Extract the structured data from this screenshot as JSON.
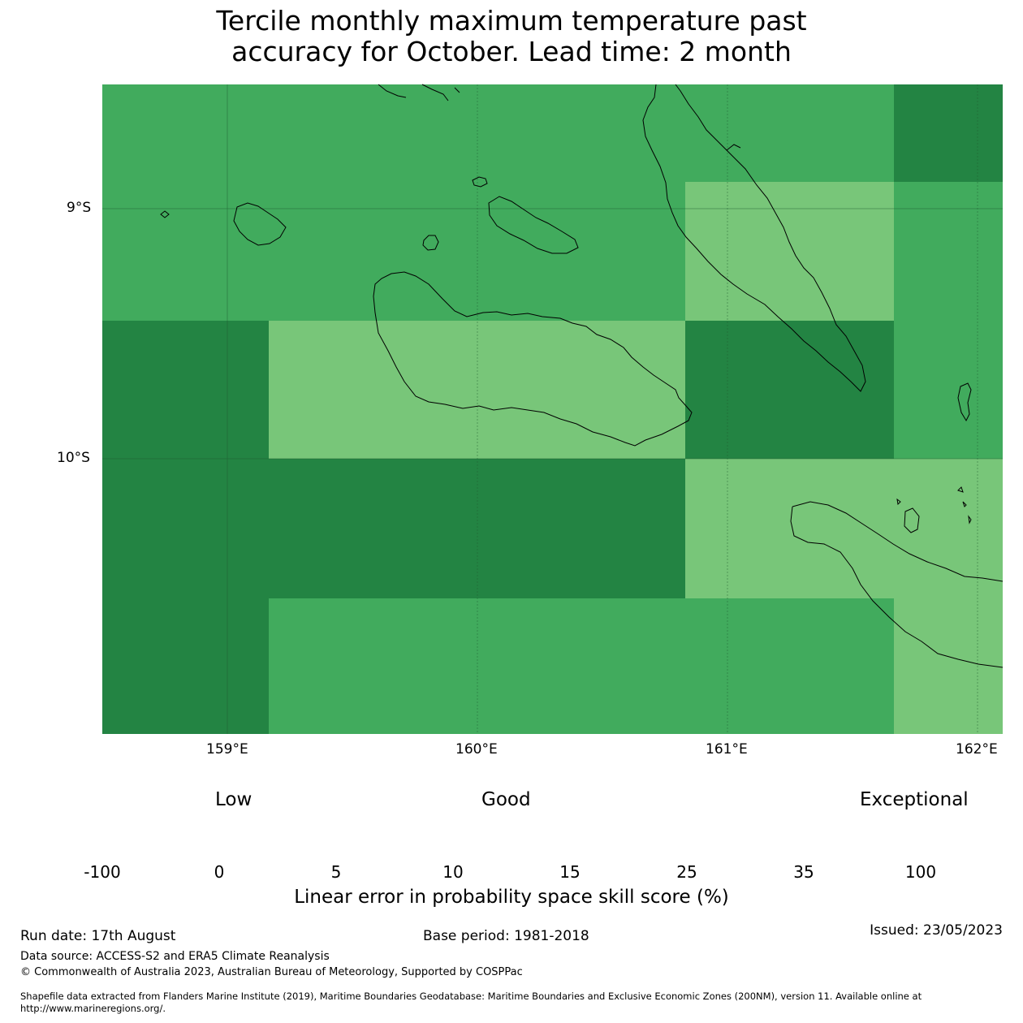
{
  "title_line1": "Tercile monthly maximum temperature past",
  "title_line2": "accuracy for October. Lead time: 2 month",
  "axes": {
    "lat_ticks": [
      "9°S",
      "10°S"
    ],
    "lon_ticks": [
      "159°E",
      "160°E",
      "161°E",
      "162°E"
    ]
  },
  "colorbar": {
    "categories": [
      "Low",
      "Good",
      "Exceptional"
    ],
    "bounds": [
      "-100",
      "0",
      "5",
      "10",
      "15",
      "25",
      "35",
      "100"
    ],
    "colors": [
      "#ffffff",
      "#ffffcc",
      "#d9f0a3",
      "#addd8e",
      "#78c679",
      "#41ab5d",
      "#238443"
    ],
    "label": "Linear error in probability space skill score (%)"
  },
  "chart_data": {
    "type": "heatmap",
    "lon_range": [
      158.5,
      162.1
    ],
    "lat_range": [
      -10.8,
      -8.4
    ],
    "cells": [
      {
        "lon": [
          158.5,
          160.83
        ],
        "lat": [
          -8.4,
          -9.45
        ],
        "class": "25-35"
      },
      {
        "lon": [
          160.83,
          161.67
        ],
        "lat": [
          -8.4,
          -8.89
        ],
        "class": "25-35"
      },
      {
        "lon": [
          161.67,
          162.1
        ],
        "lat": [
          -8.4,
          -8.89
        ],
        "class": "35-100"
      },
      {
        "lon": [
          160.83,
          161.67
        ],
        "lat": [
          -8.89,
          -9.45
        ],
        "class": "15-25"
      },
      {
        "lon": [
          161.67,
          162.1
        ],
        "lat": [
          -8.89,
          -10.0
        ],
        "class": "25-35"
      },
      {
        "lon": [
          158.5,
          159.17
        ],
        "lat": [
          -9.45,
          -10.0
        ],
        "class": "35-100"
      },
      {
        "lon": [
          159.17,
          160.83
        ],
        "lat": [
          -9.45,
          -10.0
        ],
        "class": "15-25"
      },
      {
        "lon": [
          160.83,
          161.67
        ],
        "lat": [
          -9.45,
          -10.0
        ],
        "class": "35-100"
      },
      {
        "lon": [
          158.5,
          160.83
        ],
        "lat": [
          -10.0,
          -10.56
        ],
        "class": "35-100"
      },
      {
        "lon": [
          160.83,
          162.1
        ],
        "lat": [
          -10.0,
          -10.56
        ],
        "class": "15-25"
      },
      {
        "lon": [
          158.5,
          159.17
        ],
        "lat": [
          -10.56,
          -11.1
        ],
        "class": "35-100"
      },
      {
        "lon": [
          159.17,
          161.67
        ],
        "lat": [
          -10.56,
          -11.1
        ],
        "class": "25-35"
      },
      {
        "lon": [
          161.67,
          162.1
        ],
        "lat": [
          -10.56,
          -11.1
        ],
        "class": "15-25"
      }
    ]
  },
  "footer": {
    "run_date": "Run date: 17th August",
    "base_period": "Base period: 1981-2018",
    "issued": "Issued: 23/05/2023",
    "data_source": "Data source: ACCESS-S2 and ERA5 Climate Reanalysis",
    "copyright": "© Commonwealth of Australia 2023, Australian Bureau of Meteorology, Supported by COSPPac",
    "shapefile": "Shapefile data extracted from Flanders Marine Institute (2019), Maritime Boundaries Geodatabase: Maritime Boundaries and Exclusive Economic Zones (200NM), version 11. Available online at http://www.marineregions.org/."
  }
}
